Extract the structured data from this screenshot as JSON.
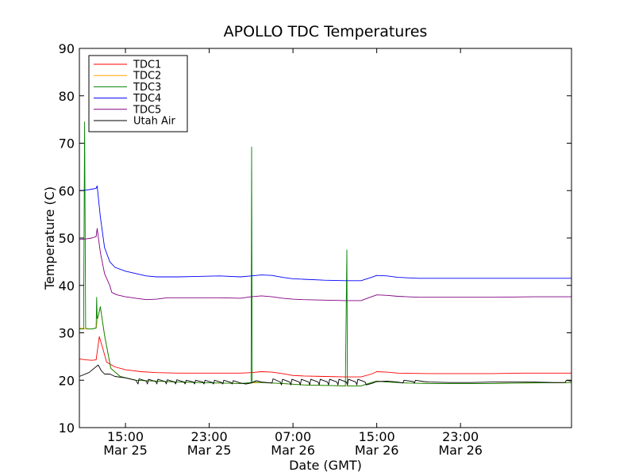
{
  "chart_data": {
    "type": "line",
    "title": "APOLLO TDC Temperatures",
    "xlabel": "Date (GMT)",
    "ylabel": "Temperature (C)",
    "ylim": [
      10,
      90
    ],
    "yticks": [
      10,
      20,
      30,
      40,
      50,
      60,
      70,
      80,
      90
    ],
    "xlim": [
      10.6,
      57.6
    ],
    "xticks": [
      {
        "x": 15,
        "time": "15:00",
        "date": "Mar 25"
      },
      {
        "x": 23,
        "time": "23:00",
        "date": "Mar 25"
      },
      {
        "x": 31,
        "time": "07:00",
        "date": "Mar 26"
      },
      {
        "x": 39,
        "time": "15:00",
        "date": "Mar 26"
      },
      {
        "x": 47,
        "time": "23:00",
        "date": "Mar 26"
      }
    ],
    "legend_position": "top-left",
    "grid": false,
    "series": [
      {
        "name": "TDC1",
        "color": "#ff0000",
        "points": [
          [
            10.6,
            24.5
          ],
          [
            11.2,
            24.3
          ],
          [
            11.8,
            24.2
          ],
          [
            12.2,
            24.3
          ],
          [
            12.5,
            29.2
          ],
          [
            12.8,
            27.0
          ],
          [
            13.2,
            23.8
          ],
          [
            14.0,
            22.8
          ],
          [
            15.0,
            22.2
          ],
          [
            16.5,
            21.8
          ],
          [
            18.0,
            21.6
          ],
          [
            20.0,
            21.5
          ],
          [
            22.0,
            21.5
          ],
          [
            24.0,
            21.5
          ],
          [
            26.0,
            21.5
          ],
          [
            27.0,
            21.6
          ],
          [
            28.0,
            21.8
          ],
          [
            29.0,
            21.7
          ],
          [
            30.0,
            21.4
          ],
          [
            31.0,
            21.0
          ],
          [
            32.0,
            20.9
          ],
          [
            34.0,
            20.8
          ],
          [
            36.0,
            20.7
          ],
          [
            37.5,
            20.7
          ],
          [
            38.5,
            21.3
          ],
          [
            39.0,
            21.8
          ],
          [
            40.0,
            21.7
          ],
          [
            41.0,
            21.5
          ],
          [
            44.0,
            21.4
          ],
          [
            47.0,
            21.4
          ],
          [
            50.0,
            21.4
          ],
          [
            53.0,
            21.5
          ],
          [
            57.6,
            21.5
          ]
        ]
      },
      {
        "name": "TDC2",
        "color": "#ffa500",
        "points": [
          [
            10.6,
            31.0
          ],
          [
            11.2,
            30.8
          ],
          [
            11.8,
            30.8
          ],
          [
            12.2,
            31.0
          ],
          [
            12.4,
            33.5
          ],
          [
            12.6,
            35.5
          ],
          [
            13.0,
            29.5
          ],
          [
            13.6,
            22.5
          ],
          [
            14.5,
            20.8
          ],
          [
            16.0,
            20.0
          ],
          [
            18.0,
            19.8
          ],
          [
            20.0,
            19.6
          ],
          [
            22.0,
            19.5
          ],
          [
            24.0,
            19.4
          ],
          [
            26.0,
            19.3
          ],
          [
            28.0,
            19.5
          ],
          [
            30.0,
            19.3
          ],
          [
            32.0,
            19.0
          ],
          [
            34.0,
            18.9
          ],
          [
            36.0,
            18.8
          ],
          [
            37.5,
            18.8
          ],
          [
            38.5,
            19.5
          ],
          [
            39.0,
            19.8
          ],
          [
            40.0,
            19.6
          ],
          [
            42.0,
            19.4
          ],
          [
            44.0,
            19.3
          ],
          [
            47.0,
            19.3
          ],
          [
            50.0,
            19.3
          ],
          [
            53.0,
            19.4
          ],
          [
            57.6,
            19.5
          ]
        ]
      },
      {
        "name": "TDC3",
        "color": "#008000",
        "points": [
          [
            10.6,
            30.8
          ],
          [
            11.0,
            30.8
          ],
          [
            11.1,
            74.5
          ],
          [
            11.2,
            31.0
          ],
          [
            11.4,
            30.8
          ],
          [
            11.8,
            30.8
          ],
          [
            12.2,
            31.0
          ],
          [
            12.25,
            37.5
          ],
          [
            12.3,
            33.0
          ],
          [
            12.4,
            33.5
          ],
          [
            12.6,
            35.5
          ],
          [
            13.0,
            29.5
          ],
          [
            13.6,
            22.5
          ],
          [
            14.5,
            20.8
          ],
          [
            16.0,
            20.0
          ],
          [
            18.0,
            19.8
          ],
          [
            20.0,
            19.6
          ],
          [
            22.0,
            19.5
          ],
          [
            24.0,
            19.4
          ],
          [
            26.0,
            19.3
          ],
          [
            27.0,
            19.5
          ],
          [
            27.05,
            69.2
          ],
          [
            27.1,
            19.6
          ],
          [
            28.0,
            19.5
          ],
          [
            30.0,
            19.3
          ],
          [
            32.0,
            19.0
          ],
          [
            34.0,
            18.9
          ],
          [
            36.0,
            18.8
          ],
          [
            36.15,
            47.5
          ],
          [
            36.2,
            18.8
          ],
          [
            37.5,
            18.8
          ],
          [
            38.5,
            19.5
          ],
          [
            39.0,
            19.8
          ],
          [
            40.0,
            19.6
          ],
          [
            42.0,
            19.4
          ],
          [
            44.0,
            19.3
          ],
          [
            47.0,
            19.3
          ],
          [
            50.0,
            19.3
          ],
          [
            53.0,
            19.4
          ],
          [
            57.6,
            19.5
          ]
        ]
      },
      {
        "name": "TDC4",
        "color": "#0000ff",
        "points": [
          [
            10.6,
            60.0
          ],
          [
            11.2,
            60.1
          ],
          [
            11.8,
            60.3
          ],
          [
            12.2,
            60.5
          ],
          [
            12.3,
            61.0
          ],
          [
            12.6,
            54.5
          ],
          [
            13.0,
            48.0
          ],
          [
            13.5,
            45.0
          ],
          [
            14.0,
            43.8
          ],
          [
            15.0,
            43.0
          ],
          [
            16.0,
            42.5
          ],
          [
            17.0,
            42.0
          ],
          [
            18.0,
            41.8
          ],
          [
            20.0,
            41.8
          ],
          [
            22.0,
            41.9
          ],
          [
            24.0,
            42.0
          ],
          [
            26.0,
            41.8
          ],
          [
            27.0,
            42.0
          ],
          [
            28.0,
            42.2
          ],
          [
            29.0,
            42.1
          ],
          [
            30.0,
            41.7
          ],
          [
            31.0,
            41.4
          ],
          [
            32.0,
            41.3
          ],
          [
            34.0,
            41.1
          ],
          [
            36.0,
            41.0
          ],
          [
            37.5,
            41.0
          ],
          [
            38.5,
            41.7
          ],
          [
            39.0,
            42.1
          ],
          [
            40.0,
            42.0
          ],
          [
            41.0,
            41.7
          ],
          [
            43.0,
            41.5
          ],
          [
            46.0,
            41.5
          ],
          [
            50.0,
            41.5
          ],
          [
            54.0,
            41.5
          ],
          [
            57.6,
            41.5
          ]
        ]
      },
      {
        "name": "TDC5",
        "color": "#800080",
        "points": [
          [
            10.6,
            49.7
          ],
          [
            11.2,
            49.8
          ],
          [
            11.8,
            50.0
          ],
          [
            12.2,
            50.3
          ],
          [
            12.3,
            52.0
          ],
          [
            12.6,
            47.0
          ],
          [
            13.0,
            42.5
          ],
          [
            13.5,
            40.0
          ],
          [
            13.7,
            38.5
          ],
          [
            14.2,
            38.0
          ],
          [
            15.0,
            37.6
          ],
          [
            16.0,
            37.3
          ],
          [
            17.0,
            37.0
          ],
          [
            18.0,
            37.1
          ],
          [
            19.0,
            37.4
          ],
          [
            20.0,
            37.4
          ],
          [
            22.0,
            37.4
          ],
          [
            24.0,
            37.4
          ],
          [
            26.0,
            37.3
          ],
          [
            27.0,
            37.6
          ],
          [
            28.0,
            37.8
          ],
          [
            29.0,
            37.6
          ],
          [
            30.0,
            37.3
          ],
          [
            31.0,
            37.1
          ],
          [
            32.0,
            37.0
          ],
          [
            34.0,
            36.9
          ],
          [
            36.0,
            36.8
          ],
          [
            37.5,
            36.8
          ],
          [
            38.5,
            37.6
          ],
          [
            39.0,
            38.0
          ],
          [
            40.0,
            37.9
          ],
          [
            41.0,
            37.7
          ],
          [
            43.0,
            37.5
          ],
          [
            46.0,
            37.5
          ],
          [
            50.0,
            37.5
          ],
          [
            54.0,
            37.6
          ],
          [
            57.6,
            37.6
          ]
        ]
      },
      {
        "name": "Utah Air",
        "color": "#000000",
        "points": [
          [
            10.6,
            20.8
          ],
          [
            11.5,
            21.6
          ],
          [
            12.0,
            22.5
          ],
          [
            12.4,
            23.2
          ],
          [
            12.7,
            22.0
          ],
          [
            13.0,
            21.3
          ],
          [
            13.5,
            21.3
          ],
          [
            14.0,
            20.8
          ],
          [
            15.0,
            20.5
          ],
          [
            16.0,
            20.0
          ],
          [
            16.2,
            19.2
          ],
          [
            16.3,
            20.3
          ],
          [
            17.0,
            19.8
          ],
          [
            17.1,
            19.2
          ],
          [
            17.2,
            20.2
          ],
          [
            17.9,
            19.7
          ],
          [
            18.0,
            19.2
          ],
          [
            18.1,
            20.2
          ],
          [
            18.8,
            19.7
          ],
          [
            18.9,
            19.2
          ],
          [
            19.0,
            20.1
          ],
          [
            19.7,
            19.6
          ],
          [
            19.8,
            19.2
          ],
          [
            19.9,
            20.1
          ],
          [
            20.6,
            19.6
          ],
          [
            20.7,
            19.2
          ],
          [
            20.8,
            20.0
          ],
          [
            21.5,
            19.6
          ],
          [
            21.6,
            19.2
          ],
          [
            21.7,
            20.0
          ],
          [
            22.4,
            19.6
          ],
          [
            22.5,
            19.2
          ],
          [
            22.6,
            20.0
          ],
          [
            23.3,
            19.5
          ],
          [
            23.4,
            19.2
          ],
          [
            23.5,
            20.0
          ],
          [
            24.2,
            19.5
          ],
          [
            24.3,
            19.2
          ],
          [
            24.4,
            20.0
          ],
          [
            25.1,
            19.5
          ],
          [
            25.2,
            19.2
          ],
          [
            25.3,
            19.9
          ],
          [
            26.0,
            19.4
          ],
          [
            26.5,
            19.2
          ],
          [
            27.0,
            19.4
          ],
          [
            27.5,
            19.9
          ],
          [
            28.0,
            19.6
          ],
          [
            29.0,
            19.4
          ],
          [
            29.1,
            20.3
          ],
          [
            29.8,
            19.6
          ],
          [
            29.9,
            19.0
          ],
          [
            30.0,
            20.2
          ],
          [
            30.7,
            19.6
          ],
          [
            30.8,
            19.0
          ],
          [
            30.9,
            20.2
          ],
          [
            31.6,
            19.6
          ],
          [
            31.7,
            19.0
          ],
          [
            31.8,
            20.2
          ],
          [
            32.5,
            19.6
          ],
          [
            32.6,
            19.0
          ],
          [
            32.7,
            20.2
          ],
          [
            33.4,
            19.6
          ],
          [
            33.5,
            19.0
          ],
          [
            33.6,
            20.2
          ],
          [
            34.3,
            19.6
          ],
          [
            34.4,
            19.0
          ],
          [
            34.5,
            20.2
          ],
          [
            35.2,
            19.6
          ],
          [
            35.3,
            19.0
          ],
          [
            35.4,
            20.2
          ],
          [
            36.1,
            19.6
          ],
          [
            36.2,
            19.0
          ],
          [
            36.3,
            20.2
          ],
          [
            37.0,
            19.6
          ],
          [
            37.1,
            19.0
          ],
          [
            37.2,
            20.2
          ],
          [
            37.9,
            19.6
          ],
          [
            38.0,
            19.0
          ],
          [
            38.5,
            19.3
          ],
          [
            39.0,
            19.7
          ],
          [
            40.0,
            19.8
          ],
          [
            41.0,
            19.6
          ],
          [
            41.5,
            19.4
          ],
          [
            41.6,
            20.0
          ],
          [
            42.5,
            19.7
          ],
          [
            42.6,
            19.4
          ],
          [
            42.7,
            20.0
          ],
          [
            43.5,
            19.7
          ],
          [
            44.0,
            19.6
          ],
          [
            46.0,
            19.5
          ],
          [
            48.0,
            19.5
          ],
          [
            50.0,
            19.6
          ],
          [
            52.0,
            19.6
          ],
          [
            54.0,
            19.6
          ],
          [
            56.0,
            19.5
          ],
          [
            57.0,
            19.5
          ],
          [
            57.1,
            20.0
          ],
          [
            57.6,
            19.8
          ]
        ]
      }
    ]
  }
}
